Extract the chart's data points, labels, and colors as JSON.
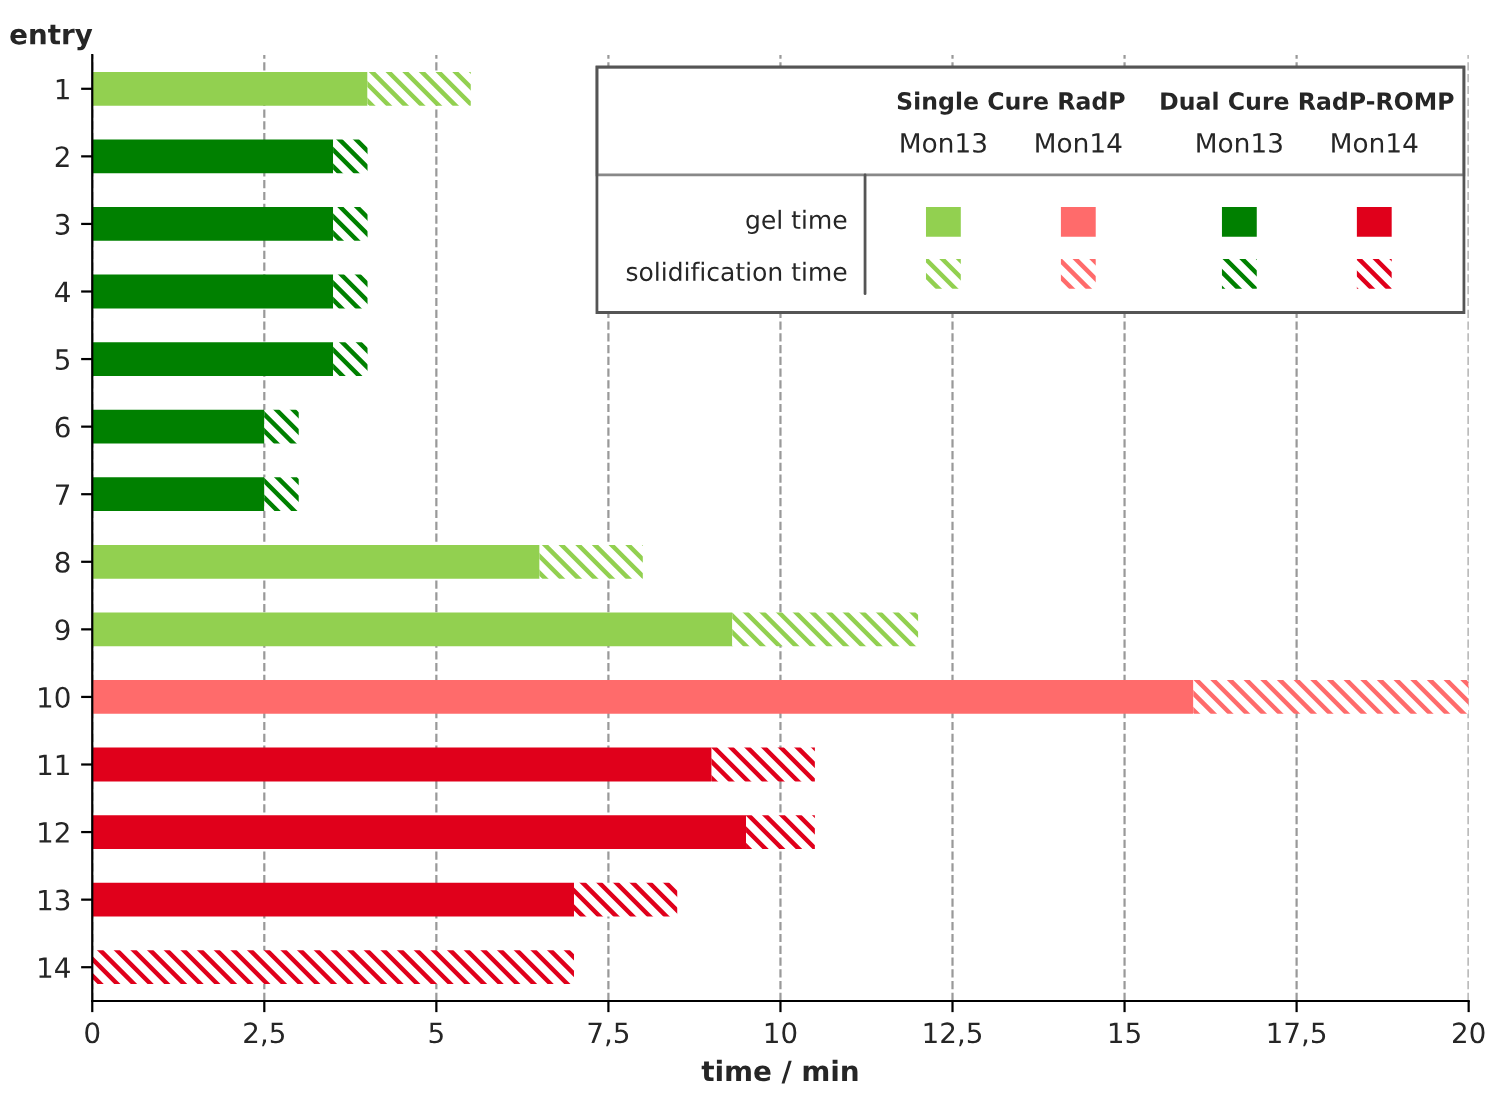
{
  "chart_data": {
    "type": "bar",
    "orientation": "horizontal",
    "stacked": true,
    "ylabel": "entry",
    "xlabel": "time / min",
    "categories": [
      "1",
      "2",
      "3",
      "4",
      "5",
      "6",
      "7",
      "8",
      "9",
      "10",
      "11",
      "12",
      "13",
      "14"
    ],
    "series": [
      {
        "name": "gel time",
        "values": [
          4,
          3.5,
          3.5,
          3.5,
          3.5,
          2.5,
          2.5,
          6.5,
          9.3,
          16,
          9,
          9.5,
          7,
          0
        ],
        "colors": [
          "#92d050",
          "#008000",
          "#008000",
          "#008000",
          "#008000",
          "#008000",
          "#008000",
          "#92d050",
          "#92d050",
          "#ff6b6b",
          "#e0001b",
          "#e0001b",
          "#e0001b",
          "#e0001b"
        ]
      },
      {
        "name": "solidification time",
        "values": [
          1.5,
          0.5,
          0.5,
          0.5,
          0.5,
          0.5,
          0.5,
          1.5,
          2.7,
          4,
          1.5,
          1,
          1.5,
          7
        ],
        "colors": [
          "#92d050",
          "#008000",
          "#008000",
          "#008000",
          "#008000",
          "#008000",
          "#008000",
          "#92d050",
          "#92d050",
          "#ff6b6b",
          "#e0001b",
          "#e0001b",
          "#e0001b",
          "#e0001b"
        ]
      }
    ],
    "xlim": [
      0,
      20
    ],
    "xticks": [
      0,
      {
        "value": 2.5,
        "label": "2,5"
      },
      5,
      {
        "value": 7.5,
        "label": "7,5"
      },
      10,
      {
        "value": 12.5,
        "label": "12,5"
      },
      15,
      {
        "value": 17.5,
        "label": "17,5"
      },
      20
    ],
    "grid": "x",
    "legend": "top right",
    "annotations": [
      "Single Cure RadP",
      "Dual Cure RadP-ROMP",
      "Mon13",
      "Mon14",
      "Mon13",
      "Mon14"
    ]
  }
}
